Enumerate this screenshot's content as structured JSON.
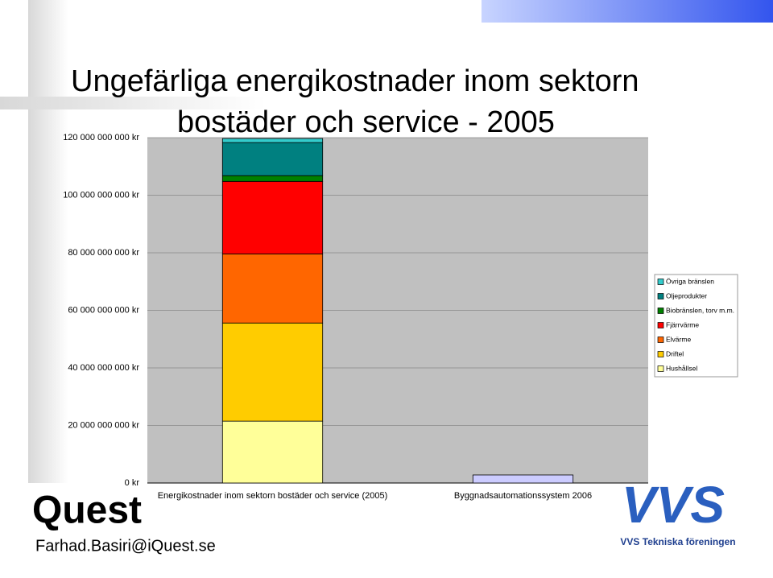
{
  "slide": {
    "title_line1": "Ungefärliga energikostnader inom sektorn",
    "title_line2": "bostäder och service - 2005",
    "logo_left": "Quest",
    "email": "Farhad.Basiri@iQuest.se",
    "logo_right_text": "VVS Tekniska föreningen",
    "logo_right_mark": "VVS"
  },
  "chart_data": {
    "type": "stacked-bar",
    "categories": [
      "Energikostnader inom sektorn bostäder och service (2005)",
      "Byggnadsautomationssystem 2006"
    ],
    "series": [
      {
        "name": "Hushållsel",
        "color": "#ffff99",
        "values": [
          21500000000,
          null
        ]
      },
      {
        "name": "Driftel",
        "color": "#ffcc00",
        "values": [
          34100000000,
          null
        ]
      },
      {
        "name": "Elvärme",
        "color": "#ff6600",
        "values": [
          24000000000,
          null
        ]
      },
      {
        "name": "Fjärrvärme",
        "color": "#ff0000",
        "values": [
          25200000000,
          null
        ]
      },
      {
        "name": "Biobränslen, torv m.m.",
        "color": "#008000",
        "values": [
          2000000000,
          null
        ]
      },
      {
        "name": "Oljeprodukter",
        "color": "#008080",
        "values": [
          11500000000,
          null
        ]
      },
      {
        "name": "Övriga bränslen",
        "color": "#33cccc",
        "values": [
          1400000000,
          null
        ]
      },
      {
        "color": "#ccccff",
        "values": [
          null,
          2800000000
        ]
      }
    ],
    "ylim": [
      0,
      120000000000
    ],
    "yticks": [
      {
        "value": 0,
        "label": "0 kr"
      },
      {
        "value": 20000000000,
        "label": "20 000 000 000 kr"
      },
      {
        "value": 40000000000,
        "label": "40 000 000 000 kr"
      },
      {
        "value": 60000000000,
        "label": "60 000 000 000 kr"
      },
      {
        "value": 80000000000,
        "label": "80 000 000 000 kr"
      },
      {
        "value": 100000000000,
        "label": "100 000 000 000 kr"
      },
      {
        "value": 120000000000,
        "label": "120 000 000 000 kr"
      }
    ],
    "grid": true,
    "plot_background": "#c0c0c0",
    "legend": "right"
  }
}
